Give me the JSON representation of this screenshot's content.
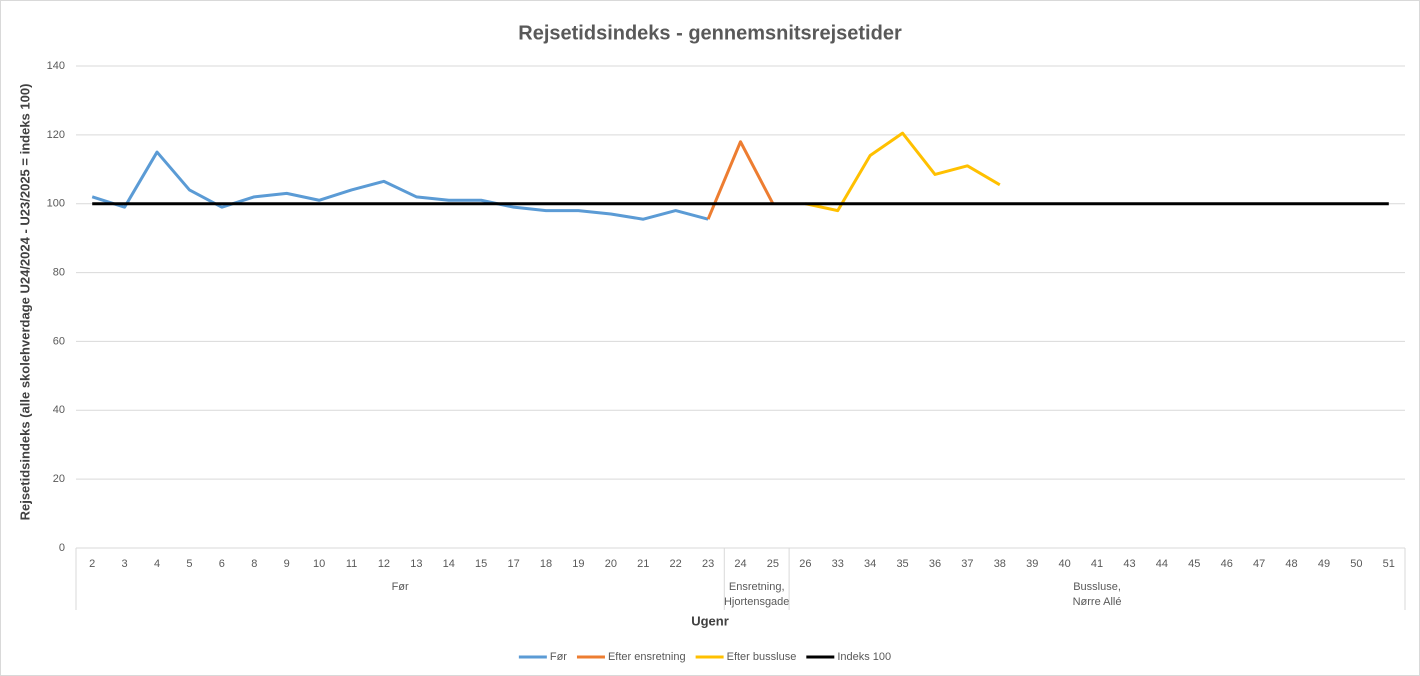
{
  "chart_data": {
    "type": "line",
    "title": "Rejsetidsindeks - gennemsnitsrejsetider",
    "x_label": "Ugenr",
    "y_label": "Rejsetidsindeks (alle skolehverdage U24/2024 - U23/2025 = indeks 100)",
    "categories": [
      "2",
      "3",
      "4",
      "5",
      "6",
      "8",
      "9",
      "10",
      "11",
      "12",
      "13",
      "14",
      "15",
      "17",
      "18",
      "19",
      "20",
      "21",
      "22",
      "23",
      "24",
      "25",
      "26",
      "33",
      "34",
      "35",
      "36",
      "37",
      "38",
      "39",
      "40",
      "41",
      "43",
      "44",
      "45",
      "46",
      "47",
      "48",
      "49",
      "50",
      "51"
    ],
    "groups": [
      {
        "label": [
          "Før"
        ],
        "count": 20
      },
      {
        "label": [
          "Ensretning,",
          "Hjortensgade"
        ],
        "count": 2
      },
      {
        "label": [
          "Bussluse,",
          "Nørre Allé"
        ],
        "count": 19
      }
    ],
    "series": [
      {
        "name": "Før",
        "color": "#5b9bd5",
        "values": [
          102,
          99,
          115,
          104,
          99,
          102,
          103,
          101,
          104,
          106.5,
          102,
          101,
          101,
          99,
          98,
          98,
          97,
          95.5,
          98,
          95.5,
          null,
          null,
          null,
          null,
          null,
          null,
          null,
          null,
          null,
          null,
          null,
          null,
          null,
          null,
          null,
          null,
          null,
          null,
          null,
          null,
          null
        ]
      },
      {
        "name": "Efter ensretning",
        "color": "#ed7d31",
        "values": [
          null,
          null,
          null,
          null,
          null,
          null,
          null,
          null,
          null,
          null,
          null,
          null,
          null,
          null,
          null,
          null,
          null,
          null,
          null,
          95.5,
          118,
          100,
          null,
          null,
          null,
          null,
          null,
          null,
          null,
          null,
          null,
          null,
          null,
          null,
          null,
          null,
          null,
          null,
          null,
          null,
          null
        ]
      },
      {
        "name": "Efter bussluse",
        "color": "#ffc000",
        "values": [
          null,
          null,
          null,
          null,
          null,
          null,
          null,
          null,
          null,
          null,
          null,
          null,
          null,
          null,
          null,
          null,
          null,
          null,
          null,
          null,
          null,
          null,
          100,
          98,
          114,
          120.5,
          108.5,
          111,
          105.5,
          null,
          null,
          null,
          null,
          null,
          null,
          null,
          null,
          null,
          null,
          null,
          null
        ]
      },
      {
        "name": "Indeks 100",
        "color": "#000000",
        "values": [
          100,
          100,
          100,
          100,
          100,
          100,
          100,
          100,
          100,
          100,
          100,
          100,
          100,
          100,
          100,
          100,
          100,
          100,
          100,
          100,
          100,
          100,
          100,
          100,
          100,
          100,
          100,
          100,
          100,
          100,
          100,
          100,
          100,
          100,
          100,
          100,
          100,
          100,
          100,
          100,
          100
        ]
      }
    ],
    "ylim": [
      0,
      140
    ],
    "yticks": [
      0,
      20,
      40,
      60,
      80,
      100,
      120,
      140
    ],
    "grid": true,
    "legend": "bottom"
  }
}
